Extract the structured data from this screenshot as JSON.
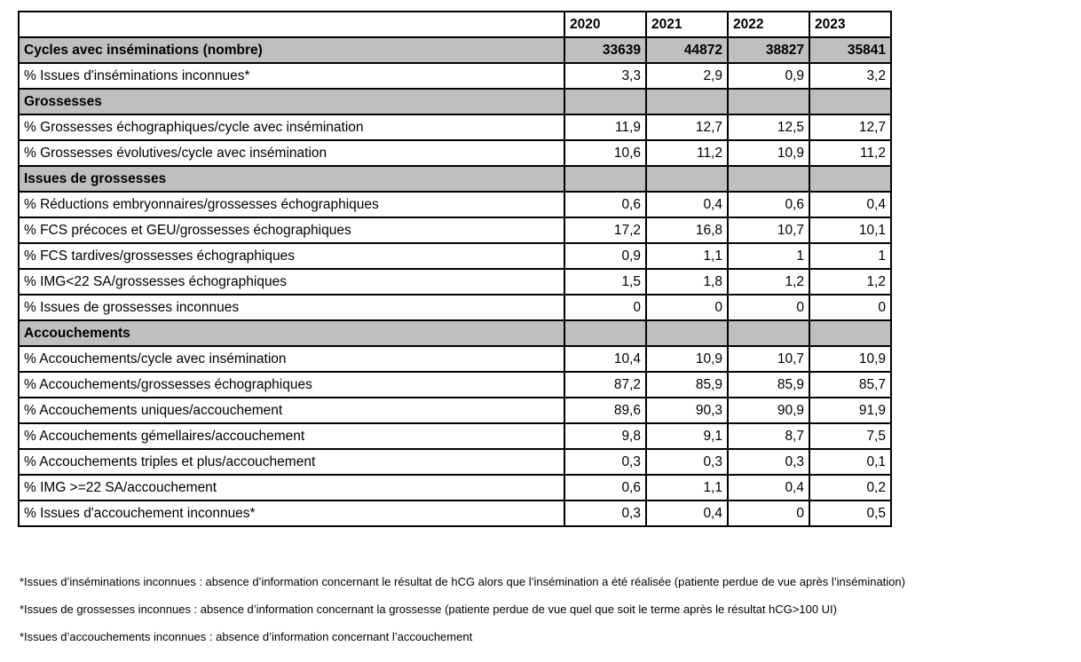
{
  "colors": {
    "section_row_bg": "#bfbfbf",
    "border": "#000000",
    "text": "#000000",
    "page_bg": "#ffffff"
  },
  "table": {
    "header": {
      "label": "",
      "years": [
        "2020",
        "2021",
        "2022",
        "2023"
      ]
    },
    "rows": [
      {
        "style": "gray",
        "label": "Cycles avec inséminations (nombre)",
        "values": [
          "33639",
          "44872",
          "38827",
          "35841"
        ]
      },
      {
        "style": "data",
        "label": "% Issues d'inséminations inconnues*",
        "values": [
          "3,3",
          "2,9",
          "0,9",
          "3,2"
        ]
      },
      {
        "style": "section",
        "label": "Grossesses",
        "values": [
          "",
          "",
          "",
          ""
        ]
      },
      {
        "style": "data",
        "label": "% Grossesses échographiques/cycle avec insémination",
        "values": [
          "11,9",
          "12,7",
          "12,5",
          "12,7"
        ]
      },
      {
        "style": "data",
        "label": "% Grossesses évolutives/cycle avec insémination",
        "values": [
          "10,6",
          "11,2",
          "10,9",
          "11,2"
        ]
      },
      {
        "style": "section",
        "label": "Issues de grossesses",
        "values": [
          "",
          "",
          "",
          ""
        ]
      },
      {
        "style": "data",
        "label": "% Réductions embryonnaires/grossesses échographiques",
        "values": [
          "0,6",
          "0,4",
          "0,6",
          "0,4"
        ]
      },
      {
        "style": "data",
        "label": "% FCS précoces et GEU/grossesses échographiques",
        "values": [
          "17,2",
          "16,8",
          "10,7",
          "10,1"
        ]
      },
      {
        "style": "data",
        "label": "% FCS tardives/grossesses échographiques",
        "values": [
          "0,9",
          "1,1",
          "1",
          "1"
        ]
      },
      {
        "style": "data",
        "label": "% IMG<22 SA/grossesses échographiques",
        "values": [
          "1,5",
          "1,8",
          "1,2",
          "1,2"
        ]
      },
      {
        "style": "data",
        "label": "% Issues de grossesses inconnues",
        "values": [
          "0",
          "0",
          "0",
          "0"
        ]
      },
      {
        "style": "section",
        "label": "Accouchements",
        "values": [
          "",
          "",
          "",
          ""
        ]
      },
      {
        "style": "data",
        "label": "% Accouchements/cycle avec insémination",
        "values": [
          "10,4",
          "10,9",
          "10,7",
          "10,9"
        ]
      },
      {
        "style": "data",
        "label": "% Accouchements/grossesses échographiques",
        "values": [
          "87,2",
          "85,9",
          "85,9",
          "85,7"
        ]
      },
      {
        "style": "data",
        "label": "% Accouchements uniques/accouchement",
        "values": [
          "89,6",
          "90,3",
          "90,9",
          "91,9"
        ]
      },
      {
        "style": "data",
        "label": "% Accouchements gémellaires/accouchement",
        "values": [
          "9,8",
          "9,1",
          "8,7",
          "7,5"
        ]
      },
      {
        "style": "data",
        "label": "% Accouchements triples et plus/accouchement",
        "values": [
          "0,3",
          "0,3",
          "0,3",
          "0,1"
        ]
      },
      {
        "style": "data",
        "label": "% IMG >=22 SA/accouchement",
        "values": [
          "0,6",
          "1,1",
          "0,4",
          "0,2"
        ]
      },
      {
        "style": "data",
        "label": "% Issues d'accouchement inconnues*",
        "values": [
          "0,3",
          "0,4",
          "0",
          "0,5"
        ]
      }
    ]
  },
  "footnotes": [
    "*Issues d’inséminations inconnues : absence d’information concernant le résultat de hCG alors que l’insémination a été réalisée (patiente perdue de vue après l’insémination)",
    "*Issues de grossesses inconnues : absence d’information concernant la grossesse (patiente perdue de vue quel que soit le terme après le résultat hCG>100 UI)",
    "*Issues d’accouchements inconnues : absence d’information concernant l’accouchement"
  ]
}
